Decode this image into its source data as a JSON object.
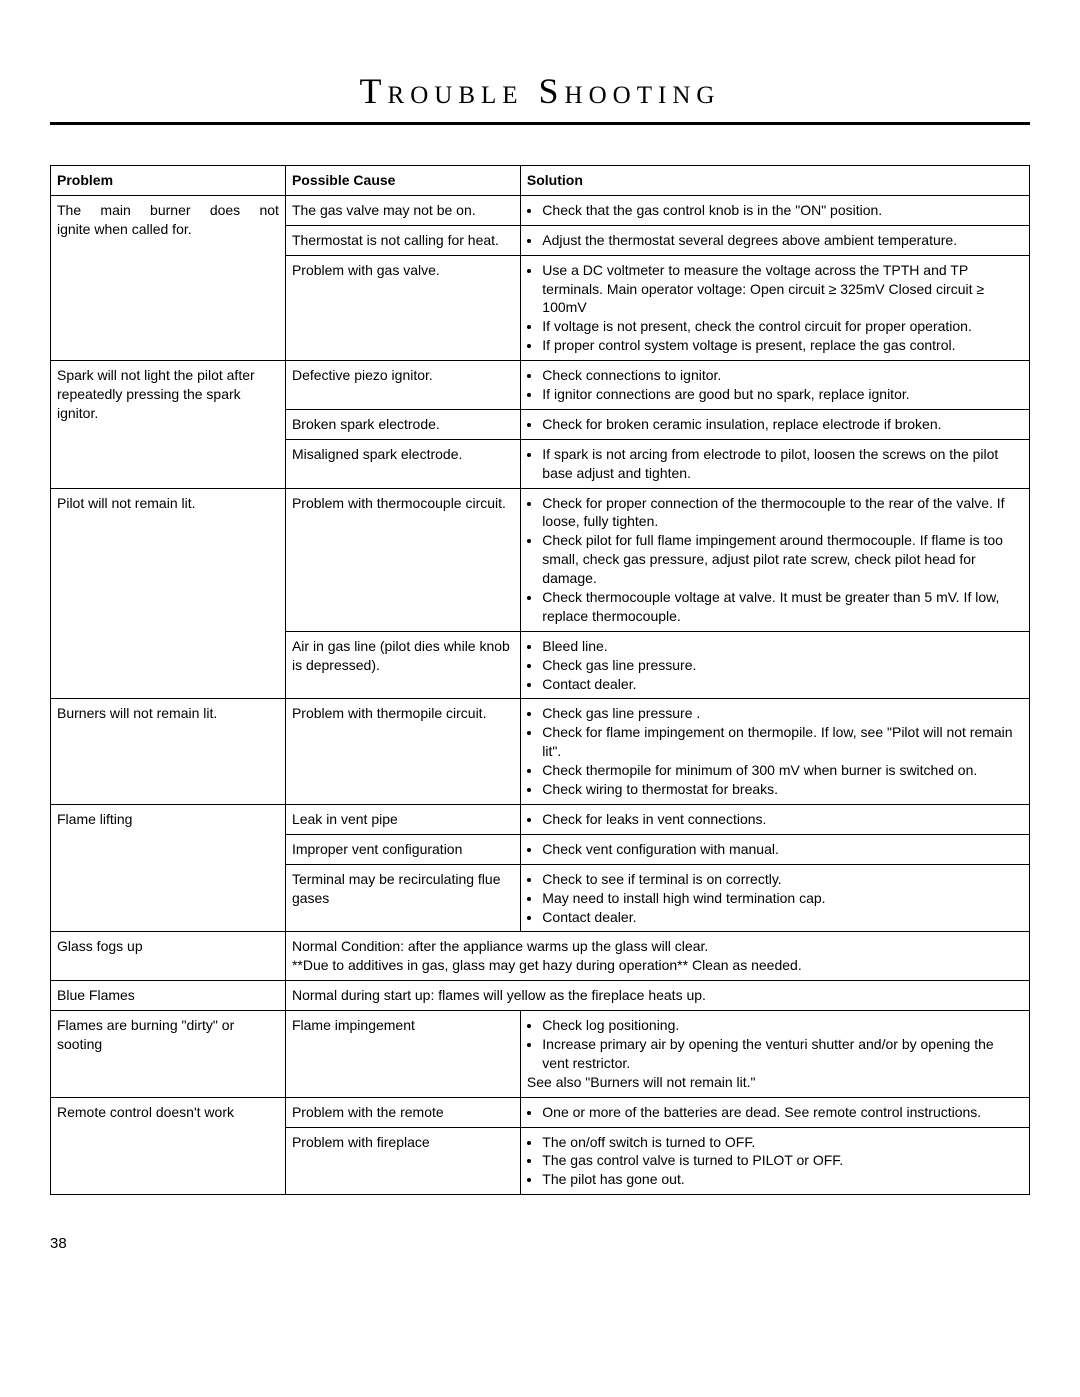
{
  "title": "Trouble Shooting",
  "page_number": "38",
  "columns": {
    "problem": "Problem",
    "cause": "Possible Cause",
    "solution": "Solution"
  },
  "rows": [
    {
      "problem": "The main burner does not ignite when called for.",
      "problem_rowspan": 3,
      "cause": "The gas valve may not be on.",
      "solution_items": [
        "Check that the gas control knob is in the \"ON\" position."
      ]
    },
    {
      "cause": "Thermostat is not calling for heat.",
      "solution_items": [
        "Adjust the thermostat several degrees above ambient temperature."
      ]
    },
    {
      "cause": "Problem with gas valve.",
      "solution_items": [
        "Use a DC voltmeter to measure the voltage across the TPTH and TP terminals. Main operator voltage: Open circuit ≥ 325mV Closed circuit ≥ 100mV",
        "If voltage is not present, check the control circuit for proper operation.",
        "If proper control system voltage is present, replace the gas control."
      ]
    },
    {
      "problem": "Spark will not light the pilot after repeatedly pressing the spark ignitor.",
      "problem_rowspan": 3,
      "cause": "Defective piezo ignitor.",
      "solution_items": [
        "Check connections to ignitor.",
        "If ignitor connections are good but no spark, replace ignitor."
      ]
    },
    {
      "cause": "Broken spark electrode.",
      "solution_items": [
        "Check for broken ceramic insulation, replace electrode if broken."
      ]
    },
    {
      "cause": "Misaligned spark electrode.",
      "solution_items": [
        "If spark is not arcing from electrode to pilot, loosen the screws on the pilot base adjust and tighten."
      ]
    },
    {
      "problem": "Pilot will not remain lit.",
      "problem_rowspan": 2,
      "cause": "Problem with thermocouple circuit.",
      "solution_items": [
        "Check for proper connection of the thermocouple to the rear of the valve. If loose, fully tighten.",
        "Check pilot for full flame impingement around thermocouple.  If flame is too small, check gas pressure, adjust pilot rate screw, check pilot head for damage.",
        "Check thermocouple voltage at valve. It must be greater than 5 mV.  If low, replace thermocouple."
      ]
    },
    {
      "cause": "Air in gas line (pilot dies while knob is depressed).",
      "solution_items": [
        "Bleed line.",
        "Check gas line pressure.",
        "Contact dealer."
      ]
    },
    {
      "problem": "Burners will not remain lit.",
      "problem_rowspan": 1,
      "cause": "Problem with thermopile circuit.",
      "solution_items": [
        "Check gas line pressure .",
        "Check for flame impingement on thermopile. If low, see \"Pilot will not remain lit\".",
        "Check thermopile for minimum of 300 mV when burner is switched on.",
        "Check wiring to thermostat for breaks."
      ]
    },
    {
      "problem": "Flame lifting",
      "problem_rowspan": 3,
      "cause": "Leak in vent pipe",
      "solution_items": [
        "Check for leaks in vent connections."
      ]
    },
    {
      "cause": "Improper vent configuration",
      "solution_items": [
        "Check vent configuration with manual."
      ]
    },
    {
      "cause": "Terminal may be recirculating flue gases",
      "solution_items": [
        "Check to see if terminal is on correctly.",
        "May need to install high wind termination cap.",
        "Contact dealer."
      ]
    },
    {
      "problem": "Glass fogs up",
      "span_text": "Normal Condition: after the appliance warms up the glass will clear.\n**Due to additives in gas, glass may get hazy during operation** Clean as needed."
    },
    {
      "problem": "Blue Flames",
      "span_text": "Normal during start up: flames will yellow as the fireplace heats up."
    },
    {
      "problem": "Flames are burning \"dirty\" or sooting",
      "problem_rowspan": 1,
      "cause": "Flame impingement",
      "solution_items": [
        "Check log positioning.",
        "Increase primary air by opening the venturi shutter and/or by opening the vent restrictor."
      ],
      "solution_trailer": "See also \"Burners will not remain lit.\""
    },
    {
      "problem": "Remote control doesn't work",
      "problem_rowspan": 2,
      "cause": "Problem with the remote",
      "solution_items": [
        "One or more of the batteries are dead. See remote control instructions."
      ]
    },
    {
      "cause": "Problem with fireplace",
      "solution_items": [
        "The on/off switch is turned to OFF.",
        "The gas control valve is turned to PILOT or OFF.",
        "The pilot has gone out."
      ]
    }
  ]
}
